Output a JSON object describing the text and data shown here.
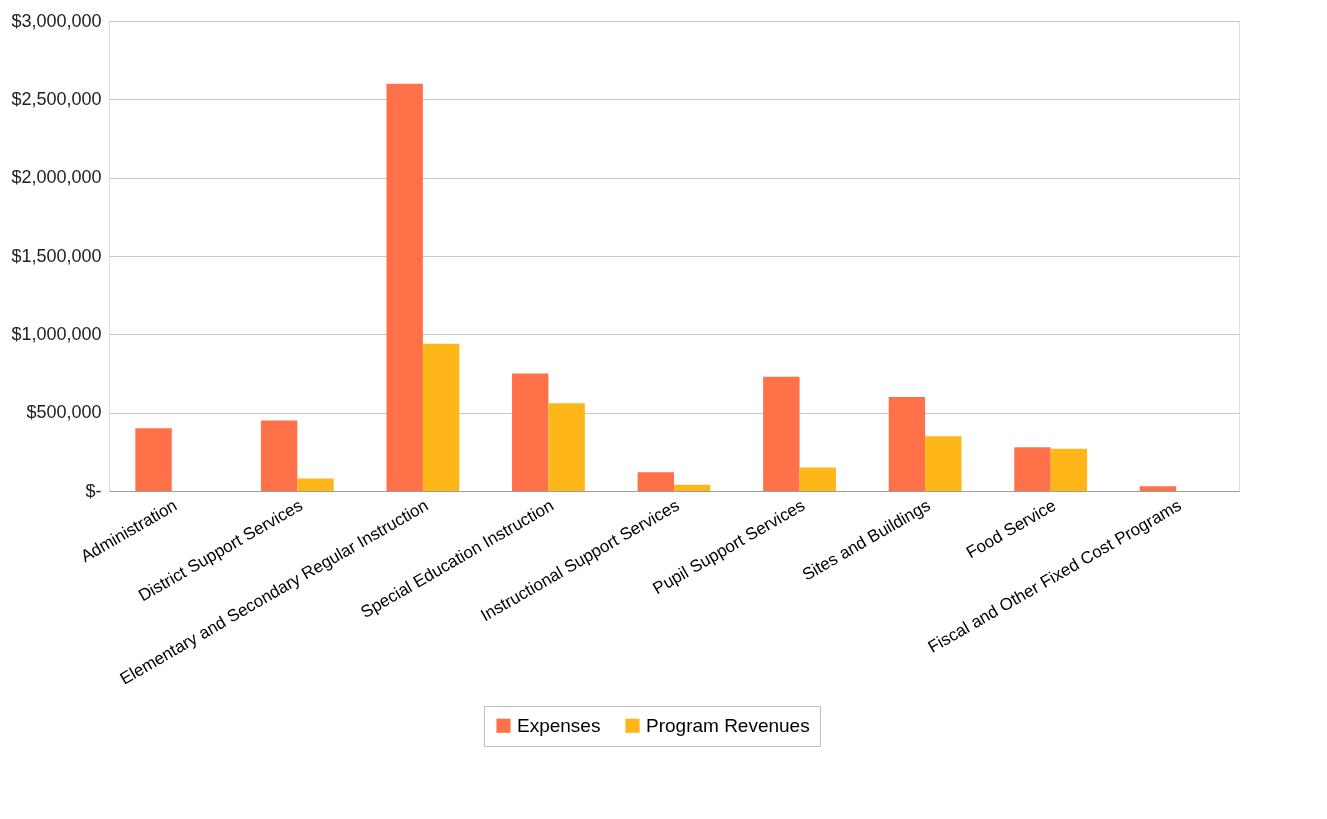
{
  "chart_data": {
    "type": "bar",
    "categories": [
      "Administration",
      "District Support Services",
      "Elementary and Secondary Regular Instruction",
      "Special Education Instruction",
      "Instructional Support Services",
      "Pupil Support Services",
      "Sites and Buildings",
      "Food Service",
      "Fiscal and Other Fixed Cost Programs"
    ],
    "series": [
      {
        "name": "Expenses",
        "color": "#ff7149",
        "values": [
          400000,
          450000,
          2600000,
          750000,
          120000,
          730000,
          600000,
          280000,
          30000
        ]
      },
      {
        "name": "Program Revenues",
        "color": "#ffb619",
        "values": [
          0,
          80000,
          940000,
          560000,
          40000,
          150000,
          350000,
          270000,
          0
        ]
      }
    ],
    "ylim": [
      0,
      3000000
    ],
    "yticks": [
      {
        "value": 0,
        "label": "$-"
      },
      {
        "value": 500000,
        "label": "$500,000"
      },
      {
        "value": 1000000,
        "label": "$1,000,000"
      },
      {
        "value": 1500000,
        "label": "$1,500,000"
      },
      {
        "value": 2000000,
        "label": "$2,000,000"
      },
      {
        "value": 2500000,
        "label": "$2,500,000"
      },
      {
        "value": 3000000,
        "label": "$3,000,000"
      }
    ],
    "grid": "y",
    "legend": "bottom"
  }
}
